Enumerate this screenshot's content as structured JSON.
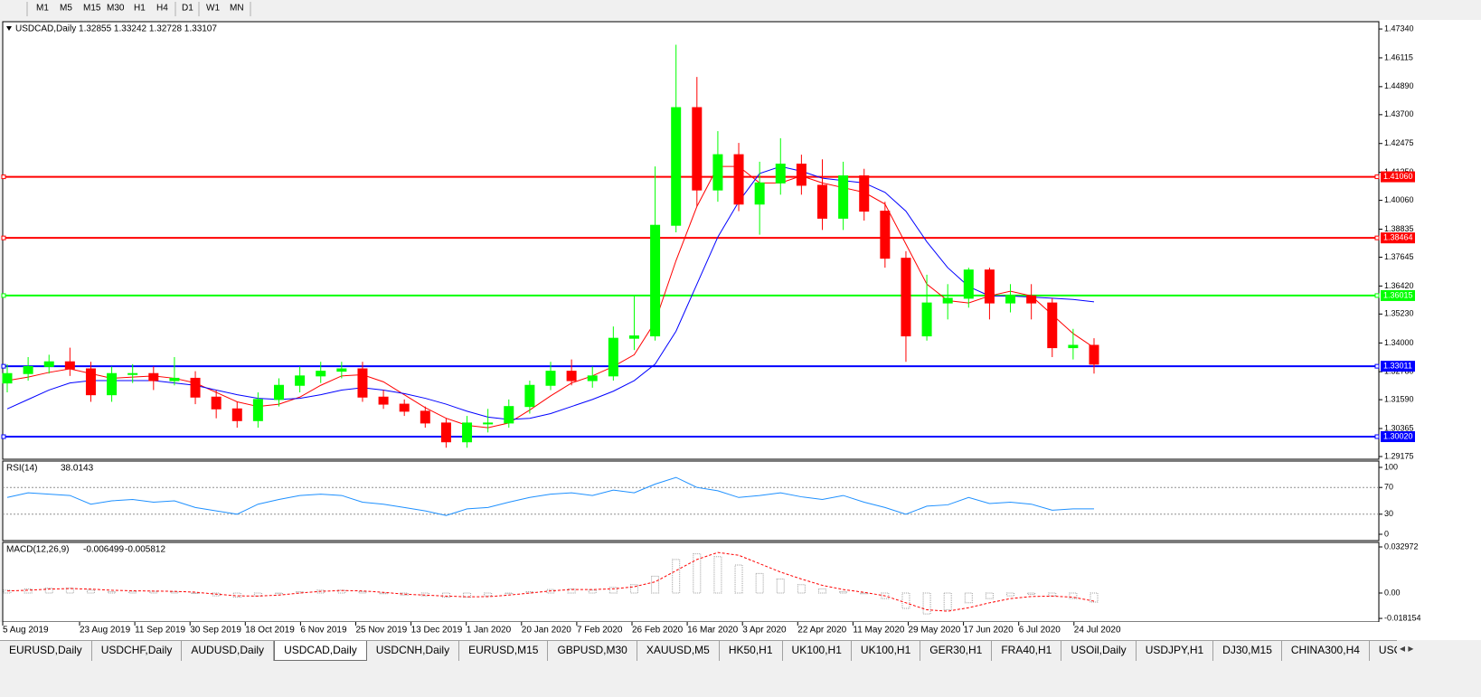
{
  "toolbar": {
    "timeframes": [
      "M1",
      "M5",
      "M15",
      "M30",
      "H1",
      "H4",
      "D1",
      "W1",
      "MN"
    ]
  },
  "chart": {
    "type": "candlestick",
    "title": "USDCAD,Daily  1.32855 1.33242 1.32728 1.33107",
    "ylim": [
      1.2906,
      1.4765
    ],
    "yticks": [
      {
        "value": 1.4734,
        "label": "1.47340"
      },
      {
        "value": 1.46115,
        "label": "1.46115"
      },
      {
        "value": 1.4489,
        "label": "1.44890"
      },
      {
        "value": 1.437,
        "label": "1.43700"
      },
      {
        "value": 1.42475,
        "label": "1.42475"
      },
      {
        "value": 1.4125,
        "label": "1.41250"
      },
      {
        "value": 1.4006,
        "label": "1.40060"
      },
      {
        "value": 1.38835,
        "label": "1.38835"
      },
      {
        "value": 1.37645,
        "label": "1.37645"
      },
      {
        "value": 1.3642,
        "label": "1.36420"
      },
      {
        "value": 1.3523,
        "label": "1.35230"
      },
      {
        "value": 1.34,
        "label": "1.34000"
      },
      {
        "value": 1.3278,
        "label": "1.32780"
      },
      {
        "value": 1.3159,
        "label": "1.31590"
      },
      {
        "value": 1.30365,
        "label": "1.30365"
      },
      {
        "value": 1.29175,
        "label": "1.29175"
      }
    ],
    "levels": [
      {
        "value": 1.4106,
        "label": "1.41060",
        "color": "#ff0000"
      },
      {
        "value": 1.38464,
        "label": "1.38464",
        "color": "#ff0000"
      },
      {
        "value": 1.36015,
        "label": "1.36015",
        "color": "#00ff00"
      },
      {
        "value": 1.33011,
        "label": "1.33011",
        "color": "#0000ff"
      },
      {
        "value": 1.3002,
        "label": "1.30020",
        "color": "#0000ff"
      }
    ],
    "xticks": [
      "5 Aug 2019",
      "23 Aug 2019",
      "11 Sep 2019",
      "30 Sep 2019",
      "18 Oct 2019",
      "6 Nov 2019",
      "25 Nov 2019",
      "13 Dec 2019",
      "1 Jan 2020",
      "20 Jan 2020",
      "7 Feb 2020",
      "26 Feb 2020",
      "16 Mar 2020",
      "3 Apr 2020",
      "22 Apr 2020",
      "11 May 2020",
      "29 May 2020",
      "17 Jun 2020",
      "6 Jul 2020",
      "24 Jul 2020"
    ],
    "up_color": "#00ff00",
    "down_color": "#ff0000",
    "open": [
      1.323,
      1.327,
      1.33,
      1.332,
      1.329,
      1.318,
      1.327,
      1.327,
      1.324,
      1.325,
      1.317,
      1.312,
      1.307,
      1.316,
      1.322,
      1.326,
      1.328,
      1.329,
      1.317,
      1.314,
      1.311,
      1.306,
      1.298,
      1.306,
      1.306,
      1.313,
      1.322,
      1.328,
      1.324,
      1.326,
      1.342,
      1.343,
      1.39,
      1.44,
      1.405,
      1.42,
      1.399,
      1.408,
      1.416,
      1.407,
      1.393,
      1.411,
      1.396,
      1.376,
      1.343,
      1.357,
      1.359,
      1.371,
      1.357,
      1.36,
      1.357,
      1.338,
      1.339
    ],
    "high": [
      1.331,
      1.334,
      1.335,
      1.338,
      1.332,
      1.33,
      1.331,
      1.33,
      1.334,
      1.328,
      1.32,
      1.315,
      1.319,
      1.325,
      1.33,
      1.332,
      1.332,
      1.332,
      1.32,
      1.316,
      1.313,
      1.308,
      1.309,
      1.312,
      1.316,
      1.324,
      1.332,
      1.333,
      1.33,
      1.347,
      1.36,
      1.415,
      1.4667,
      1.453,
      1.43,
      1.425,
      1.417,
      1.427,
      1.42,
      1.418,
      1.417,
      1.414,
      1.4,
      1.379,
      1.369,
      1.365,
      1.372,
      1.372,
      1.365,
      1.365,
      1.359,
      1.346,
      1.342
    ],
    "low": [
      1.319,
      1.324,
      1.327,
      1.326,
      1.315,
      1.315,
      1.323,
      1.32,
      1.322,
      1.314,
      1.308,
      1.304,
      1.304,
      1.313,
      1.319,
      1.323,
      1.325,
      1.315,
      1.312,
      1.309,
      1.304,
      1.2955,
      1.2955,
      1.302,
      1.304,
      1.31,
      1.32,
      1.322,
      1.321,
      1.324,
      1.337,
      1.341,
      1.387,
      1.398,
      1.4,
      1.396,
      1.386,
      1.403,
      1.403,
      1.388,
      1.388,
      1.392,
      1.372,
      1.332,
      1.341,
      1.35,
      1.355,
      1.35,
      1.353,
      1.35,
      1.334,
      1.333,
      1.327
    ],
    "close": [
      1.327,
      1.33,
      1.332,
      1.329,
      1.318,
      1.327,
      1.327,
      1.324,
      1.325,
      1.317,
      1.312,
      1.307,
      1.316,
      1.322,
      1.326,
      1.328,
      1.329,
      1.317,
      1.314,
      1.311,
      1.306,
      1.298,
      1.306,
      1.306,
      1.313,
      1.322,
      1.328,
      1.324,
      1.326,
      1.342,
      1.343,
      1.39,
      1.44,
      1.405,
      1.42,
      1.399,
      1.408,
      1.416,
      1.407,
      1.393,
      1.411,
      1.396,
      1.376,
      1.343,
      1.357,
      1.359,
      1.371,
      1.357,
      1.36,
      1.357,
      1.338,
      1.339,
      1.331
    ],
    "ma": [
      {
        "color": "#ff0000",
        "values": [
          1.324,
          1.3255,
          1.3275,
          1.329,
          1.327,
          1.325,
          1.3255,
          1.326,
          1.325,
          1.323,
          1.319,
          1.315,
          1.313,
          1.314,
          1.317,
          1.322,
          1.326,
          1.3265,
          1.3235,
          1.318,
          1.3125,
          1.308,
          1.305,
          1.304,
          1.306,
          1.3115,
          1.3175,
          1.323,
          1.326,
          1.33,
          1.335,
          1.349,
          1.375,
          1.398,
          1.415,
          1.415,
          1.408,
          1.408,
          1.411,
          1.408,
          1.406,
          1.404,
          1.399,
          1.382,
          1.365,
          1.358,
          1.357,
          1.36,
          1.362,
          1.36,
          1.352,
          1.344,
          1.338
        ]
      },
      {
        "color": "#0000ff",
        "values": [
          1.312,
          1.316,
          1.32,
          1.323,
          1.324,
          1.324,
          1.324,
          1.324,
          1.323,
          1.322,
          1.32,
          1.318,
          1.3165,
          1.316,
          1.3165,
          1.318,
          1.32,
          1.321,
          1.32,
          1.3185,
          1.3165,
          1.314,
          1.311,
          1.3085,
          1.3075,
          1.308,
          1.31,
          1.313,
          1.316,
          1.3195,
          1.324,
          1.331,
          1.345,
          1.365,
          1.385,
          1.4,
          1.412,
          1.415,
          1.413,
          1.41,
          1.409,
          1.408,
          1.404,
          1.396,
          1.383,
          1.372,
          1.364,
          1.36,
          1.36,
          1.3595,
          1.359,
          1.3585,
          1.3575
        ]
      }
    ]
  },
  "rsi": {
    "name": "RSI(14)",
    "ylim": [
      0,
      100
    ],
    "yticks": [
      100,
      70,
      30,
      0
    ],
    "color": "#1e90ff",
    "values": [
      55,
      62,
      60,
      58,
      45,
      50,
      52,
      48,
      50,
      40,
      35,
      30,
      45,
      52,
      58,
      60,
      58,
      48,
      45,
      40,
      35,
      28,
      38,
      40,
      48,
      55,
      60,
      62,
      58,
      66,
      62,
      75,
      85,
      70,
      65,
      55,
      58,
      62,
      56,
      52,
      58,
      48,
      40,
      30,
      42,
      44,
      55,
      46,
      48,
      45,
      36,
      38,
      38.0143
    ]
  },
  "macd": {
    "name": "MACD(12,26,9)",
    "ylim": [
      -0.0207,
      0.0362
    ],
    "yticks": [
      0.032972,
      {
        "value": 0,
        "label": "0.00"
      },
      -0.018154
    ],
    "hist_color": "#a0a0a0",
    "signal_color": "#ff0000",
    "histogram": [
      0.002,
      0.003,
      0.0035,
      0.0035,
      0.002,
      0.001,
      0.0012,
      0.0012,
      0.001,
      0,
      -0.002,
      -0.003,
      -0.002,
      -0.0005,
      0.001,
      0.002,
      0.002,
      0.001,
      -0.0005,
      -0.0015,
      -0.002,
      -0.003,
      -0.003,
      -0.002,
      -0.0005,
      0.001,
      0.0025,
      0.003,
      0.002,
      0.004,
      0.006,
      0.012,
      0.024,
      0.028,
      0.026,
      0.02,
      0.014,
      0.01,
      0.006,
      0.003,
      0.001,
      -0.0005,
      -0.004,
      -0.011,
      -0.015,
      -0.012,
      -0.007,
      -0.004,
      -0.002,
      -0.001,
      -0.002,
      -0.004,
      -0.006499
    ],
    "signal": [
      0.0015,
      0.002,
      0.0028,
      0.0032,
      0.0028,
      0.002,
      0.0016,
      0.0014,
      0.0012,
      0.0006,
      -0.0008,
      -0.002,
      -0.0022,
      -0.0015,
      0,
      0.0012,
      0.0018,
      0.0015,
      0.0005,
      -0.0008,
      -0.0015,
      -0.0022,
      -0.0027,
      -0.0026,
      -0.0015,
      0,
      0.0015,
      0.0025,
      0.0025,
      0.003,
      0.0045,
      0.008,
      0.016,
      0.024,
      0.029,
      0.027,
      0.021,
      0.015,
      0.01,
      0.0055,
      0.0025,
      0.0005,
      -0.002,
      -0.007,
      -0.012,
      -0.013,
      -0.0105,
      -0.007,
      -0.004,
      -0.0025,
      -0.0022,
      -0.003,
      -0.005812
    ]
  },
  "tabs": [
    "EURUSD,Daily",
    "USDCHF,Daily",
    "AUDUSD,Daily",
    "USDCAD,Daily",
    "USDCNH,Daily",
    "EURUSD,M15",
    "GBPUSD,M30",
    "XAUUSD,M5",
    "HK50,H1",
    "UK100,H1",
    "UK100,H1",
    "GER30,H1",
    "FRA40,H1",
    "USOil,Daily",
    "USDJPY,H1",
    "DJ30,M15",
    "CHINA300,H4",
    "USOil,H"
  ],
  "active_tab": 3
}
